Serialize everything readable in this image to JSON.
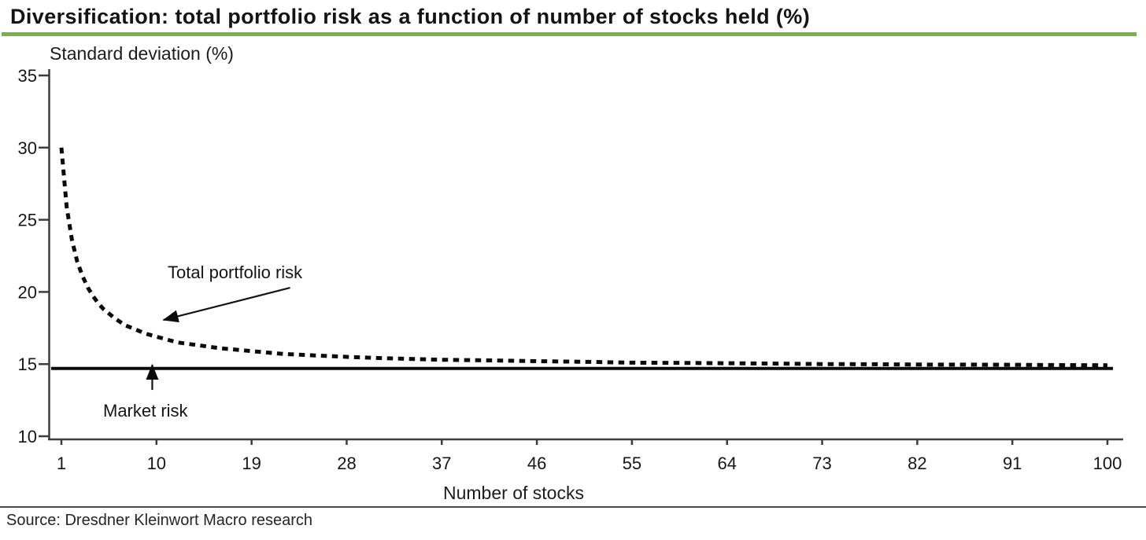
{
  "header": {
    "title": "Diversification: total portfolio risk as a function of number of stocks held (%)",
    "underline_color": "#79b144"
  },
  "footer": {
    "source": "Source: Dresdner Kleinwort Macro research"
  },
  "chart_data": {
    "type": "line",
    "title": "Diversification: total portfolio risk as a function of number of stocks held (%)",
    "xlabel": "Number of stocks",
    "ylabel": "Standard deviation (%)",
    "xlim": [
      1,
      100
    ],
    "ylim": [
      10,
      35
    ],
    "x_ticks": [
      1,
      10,
      19,
      28,
      37,
      46,
      55,
      64,
      73,
      82,
      91,
      100
    ],
    "y_ticks": [
      35,
      30,
      25,
      20,
      15,
      10
    ],
    "grid": false,
    "legend_position": "none",
    "line_color": "#0b0b0b",
    "series": [
      {
        "name": "Total portfolio risk",
        "line_style": "dotted",
        "color": "#0b0b0b",
        "x": [
          1,
          1.5,
          2,
          2.5,
          3,
          3.5,
          4,
          4.5,
          5,
          6,
          7,
          8,
          9,
          10,
          12,
          14,
          16,
          19,
          22,
          25,
          28,
          32,
          37,
          42,
          46,
          51,
          55,
          60,
          64,
          69,
          73,
          78,
          82,
          87,
          91,
          96,
          100
        ],
        "y": [
          30,
          25.9,
          23.6,
          22.1,
          21.1,
          20.3,
          19.7,
          19.2,
          18.8,
          18.2,
          17.7,
          17.4,
          17.1,
          16.9,
          16.5,
          16.3,
          16.1,
          15.9,
          15.7,
          15.6,
          15.5,
          15.4,
          15.3,
          15.25,
          15.2,
          15.15,
          15.1,
          15.08,
          15.06,
          15.03,
          15.0,
          14.99,
          14.97,
          14.96,
          14.95,
          14.93,
          14.92
        ]
      },
      {
        "name": "Market risk",
        "line_style": "solid",
        "color": "#0b0b0b",
        "x": [
          1,
          100
        ],
        "y": [
          14.7,
          14.7
        ]
      }
    ],
    "annotations": [
      {
        "text": "Total portfolio risk",
        "arrow_points_to": {
          "x": 10.5,
          "y": 18.0
        }
      },
      {
        "text": "Market risk",
        "arrow_points_to": {
          "x": 9.6,
          "y": 14.9
        }
      }
    ]
  }
}
